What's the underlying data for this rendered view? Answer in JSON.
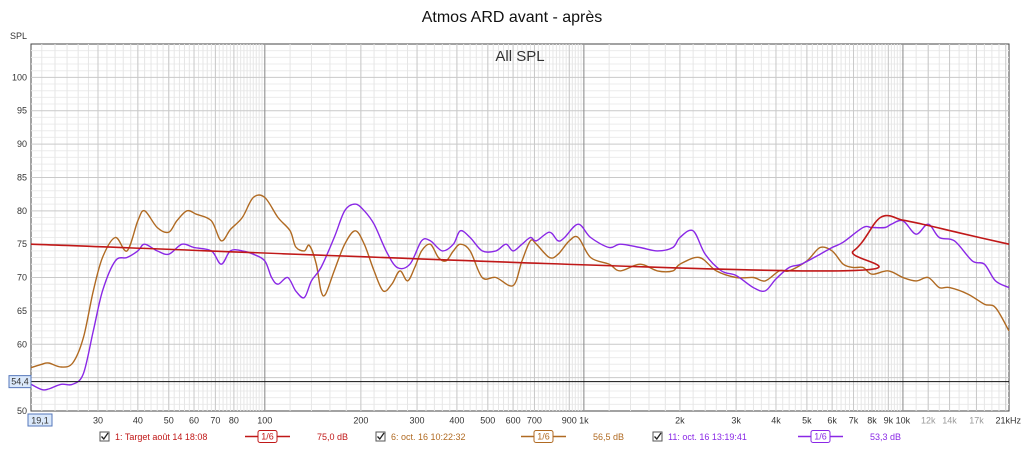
{
  "chart_data": {
    "type": "line",
    "title": "Atmos ARD avant - après",
    "subtitle": "All SPL",
    "ylabel": "SPL",
    "xunit": "kHz",
    "xscale": "log",
    "xlim": [
      18.5,
      21500
    ],
    "ylim": [
      50,
      105
    ],
    "y_ticks": [
      "50",
      "55",
      "60",
      "65",
      "70",
      "75",
      "80",
      "85",
      "90",
      "95",
      "100"
    ],
    "x_ticks": [
      {
        "v": 30,
        "label": "30"
      },
      {
        "v": 40,
        "label": "40"
      },
      {
        "v": 50,
        "label": "50"
      },
      {
        "v": 60,
        "label": "60"
      },
      {
        "v": 70,
        "label": "70"
      },
      {
        "v": 80,
        "label": "80"
      },
      {
        "v": 100,
        "label": "100"
      },
      {
        "v": 200,
        "label": "200"
      },
      {
        "v": 300,
        "label": "300"
      },
      {
        "v": 400,
        "label": "400"
      },
      {
        "v": 500,
        "label": "500"
      },
      {
        "v": 600,
        "label": "600"
      },
      {
        "v": 700,
        "label": "700"
      },
      {
        "v": 900,
        "label": "900"
      },
      {
        "v": 1000,
        "label": "1k"
      },
      {
        "v": 2000,
        "label": "2k"
      },
      {
        "v": 3000,
        "label": "3k"
      },
      {
        "v": 4000,
        "label": "4k"
      },
      {
        "v": 5000,
        "label": "5k"
      },
      {
        "v": 6000,
        "label": "6k"
      },
      {
        "v": 7000,
        "label": "7k"
      },
      {
        "v": 8000,
        "label": "8k"
      },
      {
        "v": 9000,
        "label": "9k"
      },
      {
        "v": 10000,
        "label": "10k"
      },
      {
        "v": 12000,
        "label": "12k",
        "grey": true
      },
      {
        "v": 14000,
        "label": "14k",
        "grey": true
      },
      {
        "v": 17000,
        "label": "17k",
        "grey": true
      },
      {
        "v": 21000,
        "label": "21kHz"
      }
    ],
    "cursor_x_label": "19,1",
    "cursor_y_label": "54,4",
    "cursor_y": 54.4,
    "grid": true,
    "legend_position": "bottom",
    "series": [
      {
        "name": "1: Target août 14 18:08",
        "smoothing": "1/6",
        "level": "75,0 dB",
        "color": "#c01818",
        "points": [
          [
            18.5,
            75
          ],
          [
            5000,
            71
          ],
          [
            7000,
            74
          ],
          [
            8500,
            79
          ],
          [
            10000,
            78.6
          ],
          [
            12000,
            77.8
          ],
          [
            15000,
            76.7
          ],
          [
            21500,
            75
          ]
        ]
      },
      {
        "name": "6: oct. 16 10:22:32",
        "smoothing": "1/6",
        "level": "56,5 dB",
        "color": "#b06a22",
        "points": [
          [
            18.5,
            56.5
          ],
          [
            20,
            57
          ],
          [
            21,
            57.2
          ],
          [
            23,
            56.6
          ],
          [
            25,
            57.2
          ],
          [
            27,
            61
          ],
          [
            29,
            68
          ],
          [
            31,
            73
          ],
          [
            34,
            76
          ],
          [
            37,
            74
          ],
          [
            40,
            78.5
          ],
          [
            42,
            80
          ],
          [
            46,
            77.5
          ],
          [
            50,
            76.8
          ],
          [
            53,
            78.5
          ],
          [
            57,
            80
          ],
          [
            61,
            79.5
          ],
          [
            68,
            78.5
          ],
          [
            73,
            75.5
          ],
          [
            78,
            77.2
          ],
          [
            85,
            79
          ],
          [
            92,
            82
          ],
          [
            100,
            82
          ],
          [
            110,
            79
          ],
          [
            120,
            77
          ],
          [
            125,
            74.6
          ],
          [
            133,
            74
          ],
          [
            138,
            74.8
          ],
          [
            145,
            72
          ],
          [
            150,
            68
          ],
          [
            155,
            67.5
          ],
          [
            165,
            71
          ],
          [
            178,
            75
          ],
          [
            192,
            77
          ],
          [
            205,
            75
          ],
          [
            220,
            71
          ],
          [
            235,
            68
          ],
          [
            250,
            69
          ],
          [
            265,
            71
          ],
          [
            280,
            69.5
          ],
          [
            295,
            71.5
          ],
          [
            310,
            74
          ],
          [
            330,
            75
          ],
          [
            350,
            73
          ],
          [
            370,
            72.5
          ],
          [
            390,
            74
          ],
          [
            410,
            75
          ],
          [
            440,
            74
          ],
          [
            480,
            70
          ],
          [
            530,
            70
          ],
          [
            600,
            68.8
          ],
          [
            640,
            72.5
          ],
          [
            680,
            75.5
          ],
          [
            710,
            75
          ],
          [
            780,
            73
          ],
          [
            830,
            73.5
          ],
          [
            900,
            75.5
          ],
          [
            960,
            76
          ],
          [
            1050,
            73
          ],
          [
            1200,
            72
          ],
          [
            1300,
            71
          ],
          [
            1500,
            72
          ],
          [
            1700,
            71
          ],
          [
            1900,
            71
          ],
          [
            2000,
            72
          ],
          [
            2300,
            73
          ],
          [
            2600,
            71
          ],
          [
            3000,
            70
          ],
          [
            3400,
            70
          ],
          [
            3700,
            69.5
          ],
          [
            4100,
            71
          ],
          [
            4400,
            71
          ],
          [
            5000,
            72.5
          ],
          [
            5500,
            74.5
          ],
          [
            6000,
            74
          ],
          [
            6500,
            72
          ],
          [
            7000,
            71.5
          ],
          [
            7500,
            71.5
          ],
          [
            8000,
            70.5
          ],
          [
            9000,
            71
          ],
          [
            10000,
            70
          ],
          [
            11000,
            69.5
          ],
          [
            12000,
            70
          ],
          [
            13000,
            68.5
          ],
          [
            14000,
            68.5
          ],
          [
            16000,
            67.5
          ],
          [
            18000,
            66
          ],
          [
            19500,
            65.5
          ],
          [
            21500,
            62
          ]
        ]
      },
      {
        "name": "11: oct. 16 13:19:41",
        "smoothing": "1/6",
        "level": "53,3 dB",
        "color": "#8a28e6",
        "points": [
          [
            18.5,
            54
          ],
          [
            20,
            53.2
          ],
          [
            21,
            53.3
          ],
          [
            23,
            54
          ],
          [
            25,
            54
          ],
          [
            27,
            55.6
          ],
          [
            29,
            62
          ],
          [
            31,
            68
          ],
          [
            34,
            72.5
          ],
          [
            37,
            73
          ],
          [
            40,
            74
          ],
          [
            42,
            75
          ],
          [
            46,
            74
          ],
          [
            50,
            73.5
          ],
          [
            55,
            75
          ],
          [
            60,
            74.5
          ],
          [
            68,
            74
          ],
          [
            73,
            72
          ],
          [
            78,
            74
          ],
          [
            85,
            74
          ],
          [
            92,
            73.5
          ],
          [
            100,
            72.5
          ],
          [
            105,
            70
          ],
          [
            110,
            69
          ],
          [
            118,
            70
          ],
          [
            125,
            68
          ],
          [
            133,
            67
          ],
          [
            140,
            69.5
          ],
          [
            150,
            71.5
          ],
          [
            165,
            76
          ],
          [
            178,
            80
          ],
          [
            192,
            81
          ],
          [
            205,
            80
          ],
          [
            220,
            78
          ],
          [
            240,
            74
          ],
          [
            260,
            71.5
          ],
          [
            285,
            72
          ],
          [
            310,
            75.5
          ],
          [
            330,
            75.5
          ],
          [
            360,
            74
          ],
          [
            390,
            75
          ],
          [
            410,
            77
          ],
          [
            440,
            76
          ],
          [
            480,
            74
          ],
          [
            530,
            74
          ],
          [
            570,
            75
          ],
          [
            600,
            74
          ],
          [
            640,
            75
          ],
          [
            680,
            76
          ],
          [
            710,
            75.5
          ],
          [
            780,
            76.8
          ],
          [
            830,
            75.5
          ],
          [
            870,
            76
          ],
          [
            960,
            78
          ],
          [
            1050,
            76
          ],
          [
            1200,
            74.5
          ],
          [
            1300,
            75
          ],
          [
            1500,
            74.5
          ],
          [
            1700,
            74
          ],
          [
            1900,
            74.5
          ],
          [
            2000,
            76
          ],
          [
            2200,
            77
          ],
          [
            2400,
            73.5
          ],
          [
            2700,
            71
          ],
          [
            3000,
            70.3
          ],
          [
            3400,
            68.5
          ],
          [
            3700,
            68
          ],
          [
            4000,
            69.8
          ],
          [
            4400,
            71.5
          ],
          [
            4800,
            72
          ],
          [
            5500,
            73.5
          ],
          [
            6000,
            74.5
          ],
          [
            6500,
            75.3
          ],
          [
            7500,
            77.5
          ],
          [
            8000,
            77.5
          ],
          [
            8800,
            77.5
          ],
          [
            9200,
            78
          ],
          [
            10000,
            78.5
          ],
          [
            11000,
            76.5
          ],
          [
            12000,
            78
          ],
          [
            13000,
            76
          ],
          [
            14500,
            75.5
          ],
          [
            16500,
            72.5
          ],
          [
            18000,
            72
          ],
          [
            19500,
            69.5
          ],
          [
            21500,
            68.5
          ]
        ]
      }
    ]
  }
}
